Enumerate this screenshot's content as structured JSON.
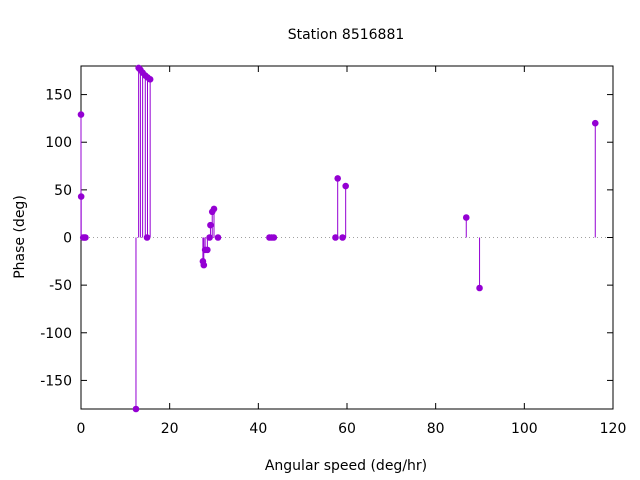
{
  "chart_data": {
    "type": "scatter",
    "style": "impulses",
    "title": "Station 8516881",
    "xlabel": "Angular speed (deg/hr)",
    "ylabel": "Phase (deg)",
    "xlim": [
      0,
      120
    ],
    "ylim": [
      -180,
      180
    ],
    "xticks": [
      0,
      20,
      40,
      60,
      80,
      100,
      120
    ],
    "yticks": [
      -150,
      -100,
      -50,
      0,
      50,
      100,
      150
    ],
    "zero_line": "dotted",
    "grid": false,
    "legend": "none",
    "color": "#9400D3",
    "series": [
      {
        "points": [
          {
            "x": 0.0,
            "y": 129
          },
          {
            "x": 0.04,
            "y": 43
          },
          {
            "x": 0.5,
            "y": 0
          },
          {
            "x": 0.8,
            "y": 0
          },
          {
            "x": 1.0,
            "y": 0
          },
          {
            "x": 12.4,
            "y": -180
          },
          {
            "x": 13.0,
            "y": 178
          },
          {
            "x": 13.4,
            "y": 176
          },
          {
            "x": 13.9,
            "y": 173
          },
          {
            "x": 14.5,
            "y": 170
          },
          {
            "x": 15.0,
            "y": 168
          },
          {
            "x": 15.6,
            "y": 166
          },
          {
            "x": 14.9,
            "y": 0
          },
          {
            "x": 27.5,
            "y": -25
          },
          {
            "x": 27.7,
            "y": -29
          },
          {
            "x": 28.0,
            "y": -13
          },
          {
            "x": 28.5,
            "y": -13
          },
          {
            "x": 29.0,
            "y": 0
          },
          {
            "x": 29.2,
            "y": 13
          },
          {
            "x": 29.6,
            "y": 27
          },
          {
            "x": 30.0,
            "y": 30
          },
          {
            "x": 30.9,
            "y": 0
          },
          {
            "x": 42.5,
            "y": 0
          },
          {
            "x": 43.0,
            "y": 0
          },
          {
            "x": 43.5,
            "y": 0
          },
          {
            "x": 57.4,
            "y": 0
          },
          {
            "x": 57.9,
            "y": 62
          },
          {
            "x": 59.0,
            "y": 0
          },
          {
            "x": 59.7,
            "y": 54
          },
          {
            "x": 86.9,
            "y": 21
          },
          {
            "x": 89.9,
            "y": -53
          },
          {
            "x": 116.0,
            "y": 120
          }
        ]
      }
    ]
  }
}
